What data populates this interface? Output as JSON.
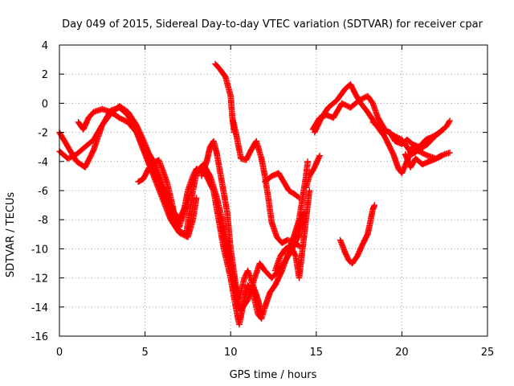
{
  "chart_data": {
    "type": "scatter",
    "title": "Day 049 of 2015, Sidereal Day-to-day VTEC variation (SDTVAR) for receiver cpar",
    "xlabel": "GPS time / hours",
    "ylabel": "SDTVAR / TECUs",
    "xlim": [
      0,
      25
    ],
    "ylim": [
      -16,
      4
    ],
    "xticks": [
      "0",
      "5",
      "10",
      "15",
      "20",
      "25"
    ],
    "yticks": [
      "4",
      "2",
      "0",
      "-2",
      "-4",
      "-6",
      "-8",
      "-10",
      "-12",
      "-14",
      "-16"
    ],
    "grid": true,
    "marker": "plus",
    "color": "#ff0000",
    "series": [
      {
        "tracks": [
          [
            [
              0.0,
              -2.0
            ],
            [
              0.5,
              -3.0
            ],
            [
              1.0,
              -4.0
            ],
            [
              1.5,
              -4.4
            ],
            [
              2.0,
              -3.2
            ],
            [
              2.5,
              -1.5
            ],
            [
              3.0,
              -0.5
            ],
            [
              3.5,
              -0.3
            ],
            [
              4.0,
              -0.8
            ],
            [
              4.5,
              -2.0
            ],
            [
              5.0,
              -3.0
            ],
            [
              5.5,
              -4.0
            ],
            [
              6.0,
              -5.5
            ],
            [
              6.3,
              -6.5
            ],
            [
              6.7,
              -7.5
            ],
            [
              7.0,
              -8.0
            ],
            [
              7.3,
              -7.2
            ],
            [
              7.5,
              -6.0
            ],
            [
              7.8,
              -5.0
            ],
            [
              8.0,
              -4.5
            ],
            [
              8.5,
              -4.8
            ],
            [
              9.0,
              -6.0
            ],
            [
              9.3,
              -8.0
            ],
            [
              9.6,
              -10.0
            ],
            [
              10.0,
              -12.0
            ],
            [
              10.3,
              -14.0
            ],
            [
              10.5,
              -15.2
            ],
            [
              10.8,
              -13.5
            ],
            [
              11.0,
              -12.5
            ],
            [
              11.3,
              -13.0
            ],
            [
              11.6,
              -14.5
            ],
            [
              11.8,
              -14.8
            ],
            [
              12.0,
              -14.0
            ],
            [
              12.3,
              -13.0
            ],
            [
              12.6,
              -12.5
            ],
            [
              13.0,
              -11.5
            ],
            [
              13.3,
              -10.5
            ],
            [
              13.6,
              -9.5
            ],
            [
              14.0,
              -8.0
            ],
            [
              14.2,
              -6.5
            ],
            [
              14.4,
              -5.0
            ],
            [
              14.5,
              -4.0
            ]
          ],
          [
            [
              0.0,
              -3.3
            ],
            [
              0.5,
              -3.8
            ],
            [
              1.0,
              -3.5
            ],
            [
              1.5,
              -3.0
            ],
            [
              2.0,
              -2.5
            ],
            [
              2.5,
              -1.5
            ],
            [
              3.0,
              -0.7
            ],
            [
              3.5,
              -0.2
            ],
            [
              4.0,
              -0.6
            ],
            [
              4.5,
              -1.5
            ],
            [
              5.0,
              -2.8
            ],
            [
              5.5,
              -4.3
            ],
            [
              6.0,
              -6.0
            ],
            [
              6.5,
              -7.5
            ],
            [
              7.0,
              -8.8
            ],
            [
              7.4,
              -9.0
            ],
            [
              7.6,
              -7.5
            ],
            [
              7.8,
              -6.0
            ],
            [
              8.0,
              -4.8
            ],
            [
              8.4,
              -4.2
            ],
            [
              8.8,
              -5.0
            ],
            [
              9.2,
              -6.5
            ],
            [
              9.6,
              -8.5
            ],
            [
              10.0,
              -11.0
            ],
            [
              10.3,
              -13.0
            ],
            [
              10.6,
              -14.2
            ],
            [
              11.0,
              -13.5
            ],
            [
              11.4,
              -12.0
            ],
            [
              11.7,
              -11.0
            ],
            [
              12.0,
              -11.5
            ],
            [
              12.4,
              -12.0
            ],
            [
              12.8,
              -11.5
            ],
            [
              13.2,
              -10.8
            ],
            [
              13.6,
              -10.0
            ],
            [
              14.0,
              -9.0
            ],
            [
              14.3,
              -7.5
            ]
          ],
          [
            [
              1.1,
              -1.3
            ],
            [
              1.4,
              -1.8
            ],
            [
              1.7,
              -1.0
            ],
            [
              2.0,
              -0.6
            ],
            [
              2.5,
              -0.4
            ],
            [
              3.0,
              -0.6
            ],
            [
              3.5,
              -1.0
            ],
            [
              4.0,
              -1.3
            ],
            [
              4.5,
              -2.0
            ],
            [
              5.0,
              -3.5
            ],
            [
              5.5,
              -5.0
            ],
            [
              6.0,
              -6.5
            ],
            [
              6.5,
              -8.0
            ],
            [
              7.0,
              -8.9
            ],
            [
              7.5,
              -9.2
            ],
            [
              7.8,
              -8.0
            ],
            [
              8.0,
              -6.5
            ]
          ],
          [
            [
              4.6,
              -5.4
            ],
            [
              4.9,
              -5.2
            ],
            [
              5.2,
              -4.5
            ],
            [
              5.5,
              -4.1
            ],
            [
              5.8,
              -3.9
            ],
            [
              6.0,
              -4.5
            ],
            [
              6.3,
              -5.5
            ],
            [
              6.6,
              -7.0
            ],
            [
              6.8,
              -8.2
            ],
            [
              7.0,
              -8.5
            ],
            [
              7.2,
              -7.8
            ],
            [
              7.5,
              -6.8
            ],
            [
              7.7,
              -6.0
            ]
          ],
          [
            [
              8.3,
              -5.0
            ],
            [
              8.6,
              -4.0
            ],
            [
              8.8,
              -3.0
            ],
            [
              9.0,
              -2.6
            ],
            [
              9.2,
              -3.5
            ],
            [
              9.5,
              -5.5
            ],
            [
              9.8,
              -7.5
            ],
            [
              10.0,
              -10.0
            ],
            [
              10.3,
              -12.5
            ],
            [
              10.5,
              -13.5
            ],
            [
              10.8,
              -12.0
            ],
            [
              11.0,
              -11.5
            ],
            [
              11.3,
              -12.5
            ],
            [
              11.6,
              -13.5
            ],
            [
              11.8,
              -14.5
            ]
          ],
          [
            [
              12.6,
              -11.5
            ],
            [
              12.9,
              -10.5
            ],
            [
              13.2,
              -10.0
            ],
            [
              13.5,
              -9.8
            ],
            [
              13.8,
              -10.5
            ],
            [
              14.0,
              -12.0
            ],
            [
              14.2,
              -10.0
            ],
            [
              14.4,
              -8.0
            ],
            [
              14.6,
              -6.0
            ]
          ],
          [
            [
              14.4,
              -5.8
            ],
            [
              14.6,
              -5.0
            ],
            [
              14.9,
              -4.4
            ],
            [
              15.2,
              -3.6
            ]
          ],
          [
            [
              14.9,
              -2.0
            ],
            [
              15.3,
              -1.0
            ],
            [
              15.7,
              -0.3
            ],
            [
              16.2,
              0.2
            ],
            [
              16.7,
              1.0
            ],
            [
              17.0,
              1.3
            ],
            [
              17.3,
              0.6
            ],
            [
              17.6,
              0.0
            ],
            [
              18.0,
              -0.6
            ],
            [
              18.5,
              -1.5
            ],
            [
              19.0,
              -2.3
            ],
            [
              19.5,
              -3.5
            ],
            [
              19.8,
              -4.5
            ],
            [
              20.0,
              -4.8
            ],
            [
              20.3,
              -4.0
            ],
            [
              20.6,
              -3.0
            ],
            [
              21.0,
              -3.3
            ],
            [
              21.5,
              -3.6
            ],
            [
              22.0,
              -3.8
            ],
            [
              22.5,
              -3.5
            ],
            [
              22.8,
              -3.4
            ]
          ],
          [
            [
              14.8,
              -1.8
            ],
            [
              15.2,
              -1.0
            ],
            [
              15.6,
              -0.8
            ],
            [
              16.0,
              -1.0
            ],
            [
              16.5,
              0.0
            ],
            [
              17.0,
              -0.3
            ],
            [
              17.5,
              0.2
            ],
            [
              18.0,
              0.5
            ],
            [
              18.3,
              0.0
            ],
            [
              18.6,
              -1.0
            ],
            [
              19.0,
              -1.8
            ],
            [
              19.5,
              -2.2
            ],
            [
              20.0,
              -2.5
            ],
            [
              20.3,
              -3.0
            ],
            [
              20.6,
              -3.5
            ],
            [
              21.0,
              -3.2
            ],
            [
              21.5,
              -2.8
            ],
            [
              22.0,
              -2.2
            ],
            [
              22.4,
              -1.8
            ]
          ],
          [
            [
              18.3,
              -1.3
            ],
            [
              18.7,
              -1.6
            ],
            [
              19.0,
              -1.9
            ],
            [
              19.3,
              -2.0
            ],
            [
              19.6,
              -2.6
            ],
            [
              20.0,
              -2.8
            ],
            [
              20.3,
              -2.5
            ],
            [
              20.6,
              -2.8
            ],
            [
              21.0,
              -3.0
            ],
            [
              21.4,
              -2.5
            ],
            [
              21.8,
              -2.3
            ],
            [
              22.2,
              -2.0
            ],
            [
              22.6,
              -1.6
            ],
            [
              22.8,
              -1.2
            ]
          ],
          [
            [
              20.2,
              -3.5
            ],
            [
              20.5,
              -4.4
            ],
            [
              20.8,
              -3.8
            ],
            [
              21.2,
              -4.2
            ],
            [
              21.6,
              -4.0
            ],
            [
              22.0,
              -3.8
            ],
            [
              22.3,
              -3.6
            ]
          ],
          [
            [
              16.4,
              -9.4
            ],
            [
              16.7,
              -10.3
            ],
            [
              16.9,
              -10.8
            ],
            [
              17.1,
              -11.0
            ],
            [
              17.4,
              -10.5
            ],
            [
              17.7,
              -9.7
            ],
            [
              18.0,
              -9.0
            ],
            [
              18.2,
              -7.9
            ],
            [
              18.3,
              -7.3
            ],
            [
              18.4,
              -7.0
            ]
          ],
          [
            [
              9.1,
              2.7
            ],
            [
              9.4,
              2.3
            ],
            [
              9.7,
              1.8
            ],
            [
              10.0,
              0.5
            ],
            [
              10.1,
              -1.0
            ],
            [
              10.2,
              -2.0
            ]
          ],
          [
            [
              10.1,
              -1.0
            ],
            [
              10.3,
              -2.0
            ],
            [
              10.6,
              -3.8
            ],
            [
              10.9,
              -3.9
            ],
            [
              11.2,
              -3.2
            ],
            [
              11.5,
              -2.6
            ],
            [
              11.8,
              -3.8
            ],
            [
              12.0,
              -5.0
            ],
            [
              12.2,
              -6.5
            ],
            [
              12.4,
              -8.2
            ],
            [
              12.7,
              -9.2
            ],
            [
              13.0,
              -9.6
            ],
            [
              13.3,
              -9.4
            ],
            [
              13.6,
              -9.5
            ],
            [
              14.0,
              -9.8
            ]
          ],
          [
            [
              12.0,
              -5.4
            ],
            [
              12.4,
              -5.0
            ],
            [
              12.8,
              -4.8
            ],
            [
              13.1,
              -5.4
            ],
            [
              13.4,
              -6.0
            ],
            [
              13.8,
              -6.3
            ],
            [
              14.0,
              -6.5
            ]
          ]
        ]
      }
    ]
  }
}
